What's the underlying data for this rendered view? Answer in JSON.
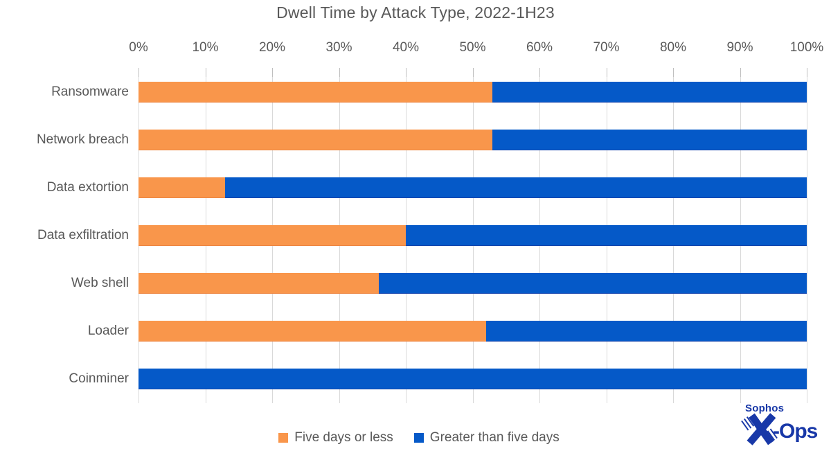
{
  "title": "Dwell Time by Attack Type, 2022-1H23",
  "chart_data": {
    "type": "bar",
    "orientation": "horizontal",
    "stacked": true,
    "units": "percent",
    "title": "Dwell Time by Attack Type, 2022-1H23",
    "categories": [
      "Ransomware",
      "Network breach",
      "Data extortion",
      "Data exfiltration",
      "Web shell",
      "Loader",
      "Coinminer"
    ],
    "series": [
      {
        "name": "Five days or less",
        "color": "#F9964B",
        "border_color": "#ED8540",
        "values": [
          53,
          53,
          13,
          40,
          36,
          52,
          0
        ]
      },
      {
        "name": "Greater than five days",
        "color": "#0559C8",
        "border_color": "#1243AC",
        "values": [
          47,
          47,
          87,
          60,
          64,
          48,
          100
        ]
      }
    ],
    "x_ticks": [
      "0%",
      "10%",
      "20%",
      "30%",
      "40%",
      "50%",
      "60%",
      "70%",
      "80%",
      "90%",
      "100%"
    ],
    "xlim": [
      0,
      100
    ],
    "grid": true,
    "gridline_color": "#D9D9D9",
    "tick_color": "#BFBFBF",
    "legend_position": "bottom"
  },
  "logo": {
    "brand": "Sophos",
    "suffix": "-Ops",
    "color": "#1838A8"
  },
  "colors": {
    "text": "#595959",
    "background": "#ffffff"
  }
}
